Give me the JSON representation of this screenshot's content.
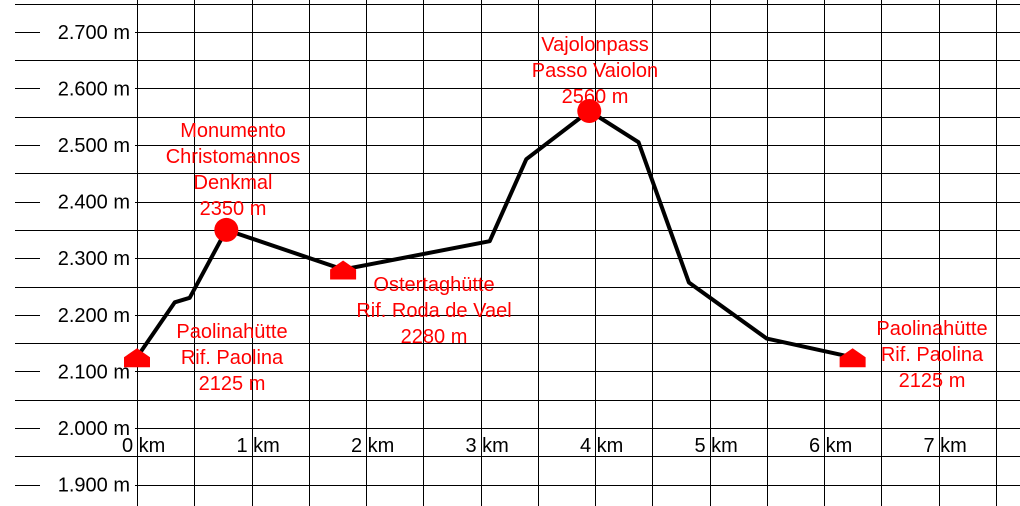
{
  "chart_data": {
    "type": "line",
    "title": "",
    "xlabel": "",
    "ylabel": "",
    "xlim": [
      0,
      7.5
    ],
    "ylim": [
      1875,
      2720
    ],
    "grid": true,
    "x_ticks": [
      0,
      1,
      2,
      3,
      4,
      5,
      6,
      7
    ],
    "x_tick_labels": [
      "0 km",
      "1 km",
      "2 km",
      "3 km",
      "4 km",
      "5 km",
      "6 km",
      "7 km"
    ],
    "y_ticks": [
      1900,
      2000,
      2100,
      2200,
      2300,
      2400,
      2500,
      2600,
      2700
    ],
    "y_tick_labels": [
      "1.900 m",
      "2.000 m",
      "2.100 m",
      "2.200 m",
      "2.300 m",
      "2.400 m",
      "2.500 m",
      "2.600 m",
      "2.700 m"
    ],
    "series": [
      {
        "x": [
          0,
          0.33,
          0.46,
          0.78,
          1.8,
          3.08,
          3.4,
          3.95,
          4.38,
          4.82,
          5.5,
          6.25
        ],
        "y": [
          2125,
          2222,
          2230,
          2350,
          2280,
          2330,
          2475,
          2560,
          2505,
          2257,
          2158,
          2125
        ]
      }
    ],
    "annotations": [
      {
        "name": "paolina-start",
        "marker": "hut",
        "x": 0,
        "y": 2125,
        "lines": [
          "Paolinahütte",
          "Rif.  Paolina",
          "2125 m"
        ]
      },
      {
        "name": "monumento",
        "marker": "circle",
        "x": 0.78,
        "y": 2350,
        "lines": [
          "Monumento",
          "Christomannos",
          "Denkmal",
          "2350 m"
        ]
      },
      {
        "name": "ostertag",
        "marker": "hut",
        "x": 1.8,
        "y": 2280,
        "lines": [
          "Ostertaghütte",
          "Rif. Roda de Vael",
          "2280 m"
        ]
      },
      {
        "name": "vajolon",
        "marker": "circle",
        "x": 3.95,
        "y": 2560,
        "lines": [
          "Vajolonpass",
          "Passo Vaiolon",
          "2560 m"
        ]
      },
      {
        "name": "paolina-end",
        "marker": "hut",
        "x": 6.25,
        "y": 2125,
        "lines": [
          "Paolinahütte",
          "Rif. Paolina",
          "2125 m"
        ]
      }
    ],
    "colors": {
      "line": "#000000",
      "marker": "#ff0000",
      "annotation": "#ff0000",
      "grid": "#000000"
    }
  }
}
